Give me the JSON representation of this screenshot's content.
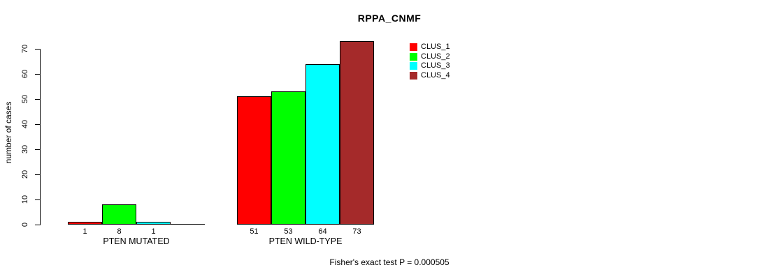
{
  "chart_data": {
    "type": "bar",
    "title": "RPPA_CNMF",
    "ylabel": "number of cases",
    "xlabel": "",
    "ylim": [
      0,
      70
    ],
    "yticks": [
      0,
      10,
      20,
      30,
      40,
      50,
      60,
      70
    ],
    "grid": false,
    "legend_position": "top-right",
    "categories": [
      "PTEN MUTATED",
      "PTEN WILD-TYPE"
    ],
    "series": [
      {
        "name": "CLUS_1",
        "color": "#FF0000",
        "values": [
          1,
          51
        ]
      },
      {
        "name": "CLUS_2",
        "color": "#00FF00",
        "values": [
          8,
          53
        ]
      },
      {
        "name": "CLUS_3",
        "color": "#00FFFF",
        "values": [
          1,
          64
        ]
      },
      {
        "name": "CLUS_4",
        "color": "#A52A2A",
        "values": [
          0,
          73
        ]
      }
    ],
    "groups": [
      {
        "label": "PTEN MUTATED",
        "values": [
          1,
          8,
          1,
          0
        ],
        "bar_labels": [
          "1",
          "8",
          "1",
          ""
        ]
      },
      {
        "label": "PTEN WILD-TYPE",
        "values": [
          51,
          53,
          64,
          73
        ],
        "bar_labels": [
          "51",
          "53",
          "64",
          "73"
        ]
      }
    ],
    "legend": [
      {
        "label": "CLUS_1",
        "color": "#FF0000"
      },
      {
        "label": "CLUS_2",
        "color": "#00FF00"
      },
      {
        "label": "CLUS_3",
        "color": "#00FFFF"
      },
      {
        "label": "CLUS_4",
        "color": "#A52A2A"
      }
    ],
    "caption": "Fisher's exact test P = 0.000505"
  }
}
